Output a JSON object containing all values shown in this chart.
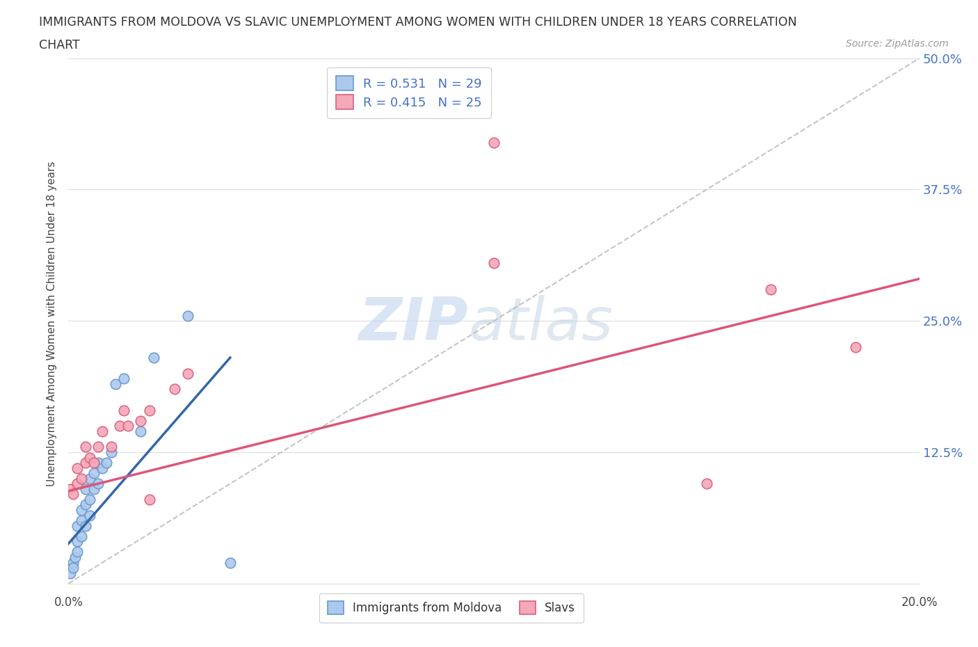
{
  "title_line1": "IMMIGRANTS FROM MOLDOVA VS SLAVIC UNEMPLOYMENT AMONG WOMEN WITH CHILDREN UNDER 18 YEARS CORRELATION",
  "title_line2": "CHART",
  "source_text": "Source: ZipAtlas.com",
  "ylabel": "Unemployment Among Women with Children Under 18 years",
  "watermark_zip": "ZIP",
  "watermark_atlas": "atlas",
  "legend1_label": "Immigrants from Moldova",
  "legend2_label": "Slavs",
  "R1": 0.531,
  "N1": 29,
  "R2": 0.415,
  "N2": 25,
  "xlim": [
    0.0,
    0.2
  ],
  "ylim": [
    -0.005,
    0.5
  ],
  "yticks_right": [
    0.0,
    0.125,
    0.25,
    0.375,
    0.5
  ],
  "ytick_right_labels": [
    "",
    "12.5%",
    "25.0%",
    "37.5%",
    "50.0%"
  ],
  "blue_color": "#adc8ed",
  "blue_edge_color": "#6699cc",
  "pink_color": "#f4a8b8",
  "pink_edge_color": "#d96080",
  "blue_line_color": "#3366aa",
  "pink_line_color": "#dd5577",
  "diag_line_color": "#bbbbbb",
  "background_color": "#ffffff",
  "grid_color": "#dddddd",
  "title_color": "#333333",
  "right_tick_color": "#4472c4",
  "blue_scatter_x": [
    0.0005,
    0.001,
    0.001,
    0.0015,
    0.002,
    0.002,
    0.002,
    0.003,
    0.003,
    0.003,
    0.004,
    0.004,
    0.004,
    0.005,
    0.005,
    0.005,
    0.006,
    0.006,
    0.007,
    0.007,
    0.008,
    0.009,
    0.01,
    0.011,
    0.013,
    0.017,
    0.02,
    0.028,
    0.038
  ],
  "blue_scatter_y": [
    0.01,
    0.02,
    0.015,
    0.025,
    0.03,
    0.04,
    0.055,
    0.045,
    0.06,
    0.07,
    0.055,
    0.075,
    0.09,
    0.065,
    0.08,
    0.1,
    0.09,
    0.105,
    0.095,
    0.115,
    0.11,
    0.115,
    0.125,
    0.19,
    0.195,
    0.145,
    0.215,
    0.255,
    0.02
  ],
  "pink_scatter_x": [
    0.0005,
    0.001,
    0.002,
    0.002,
    0.003,
    0.004,
    0.004,
    0.005,
    0.006,
    0.007,
    0.008,
    0.01,
    0.012,
    0.013,
    0.014,
    0.017,
    0.019,
    0.028,
    0.1,
    0.15,
    0.165,
    0.185,
    0.1,
    0.025,
    0.019
  ],
  "pink_scatter_y": [
    0.09,
    0.085,
    0.095,
    0.11,
    0.1,
    0.115,
    0.13,
    0.12,
    0.115,
    0.13,
    0.145,
    0.13,
    0.15,
    0.165,
    0.15,
    0.155,
    0.165,
    0.2,
    0.42,
    0.095,
    0.28,
    0.225,
    0.305,
    0.185,
    0.08
  ],
  "blue_line_x": [
    0.0,
    0.038
  ],
  "blue_line_y": [
    0.038,
    0.215
  ],
  "pink_line_x": [
    0.0,
    0.2
  ],
  "pink_line_y": [
    0.088,
    0.29
  ],
  "diag_line_x": [
    0.0,
    0.2
  ],
  "diag_line_y": [
    0.0,
    0.5
  ]
}
